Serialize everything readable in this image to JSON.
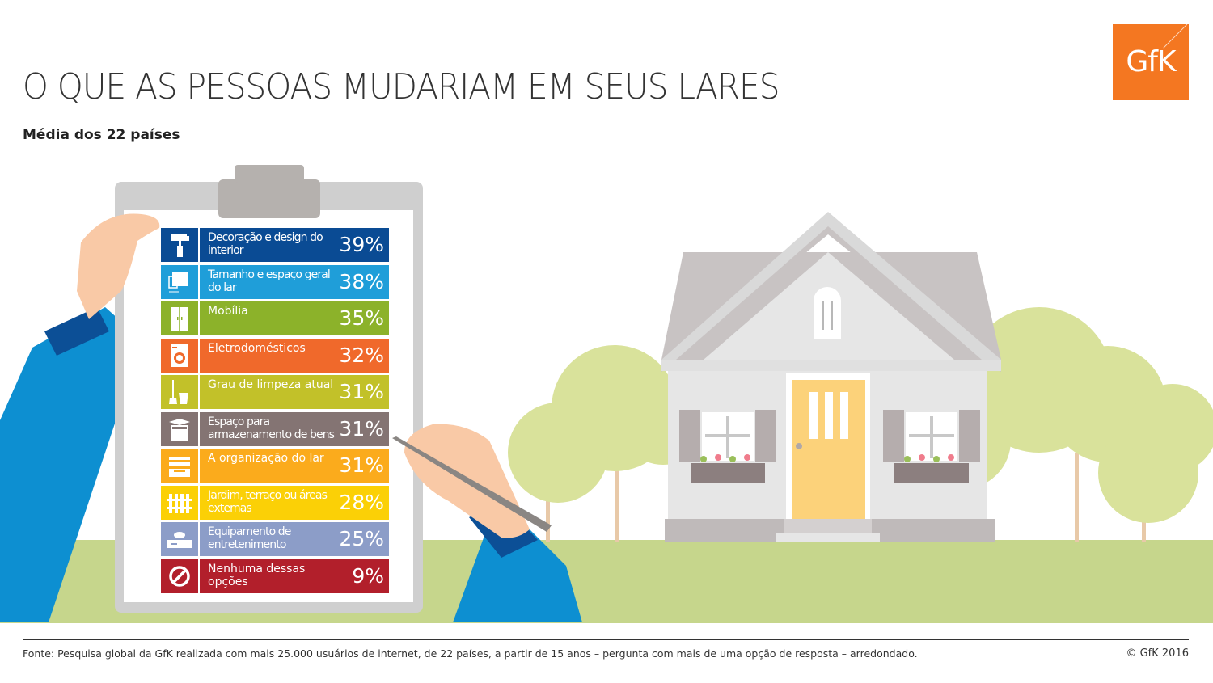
{
  "header": {
    "title": "O QUE AS PESSOAS MUDARIAM EM SEUS LARES",
    "subtitle": "Média dos 22 países"
  },
  "logo": {
    "text": "GfK",
    "color": "#f47721"
  },
  "chart_data": {
    "type": "table",
    "title": "O QUE AS PESSOAS MUDARIAM EM SEUS LARES",
    "subtitle": "Média dos 22 países",
    "unit": "%",
    "rows": [
      {
        "label": "Decoração e design do interior",
        "value": 39,
        "display": "39%",
        "color": "#0a4b94",
        "icon": "paint-roller-icon"
      },
      {
        "label": "Tamanho e espaço geral do lar",
        "value": 38,
        "display": "38%",
        "color": "#1f9ed9",
        "icon": "floor-plan-icon"
      },
      {
        "label": "Mobília",
        "value": 35,
        "display": "35%",
        "color": "#8cb22a",
        "icon": "wardrobe-icon"
      },
      {
        "label": "Eletrodomésticos",
        "value": 32,
        "display": "32%",
        "color": "#f0692b",
        "icon": "washing-machine-icon"
      },
      {
        "label": "Grau de limpeza atual",
        "value": 31,
        "display": "31%",
        "color": "#c2c129",
        "icon": "broom-bucket-icon"
      },
      {
        "label": "Espaço para armazenamento de bens",
        "value": 31,
        "display": "31%",
        "color": "#847473",
        "icon": "storage-box-icon"
      },
      {
        "label": "A organização do lar",
        "value": 31,
        "display": "31%",
        "color": "#fbab1c",
        "icon": "organizer-tray-icon"
      },
      {
        "label": "Jardim, terraço ou áreas externas",
        "value": 28,
        "display": "28%",
        "color": "#fbd006",
        "icon": "fence-icon"
      },
      {
        "label": "Equipamento de entretenimento",
        "value": 25,
        "display": "25%",
        "color": "#8c9dc8",
        "icon": "game-console-icon"
      },
      {
        "label": "Nenhuma dessas opções",
        "value": 9,
        "display": "9%",
        "color": "#b21f2b",
        "icon": "prohibited-icon"
      }
    ]
  },
  "footer": {
    "source": "Fonte: Pesquisa global da GfK realizada com mais 25.000 usuários de internet, de 22 países, a partir de 15 anos – pergunta com mais de uma opção de resposta – arredondado.",
    "copyright": "© GfK 2016"
  }
}
